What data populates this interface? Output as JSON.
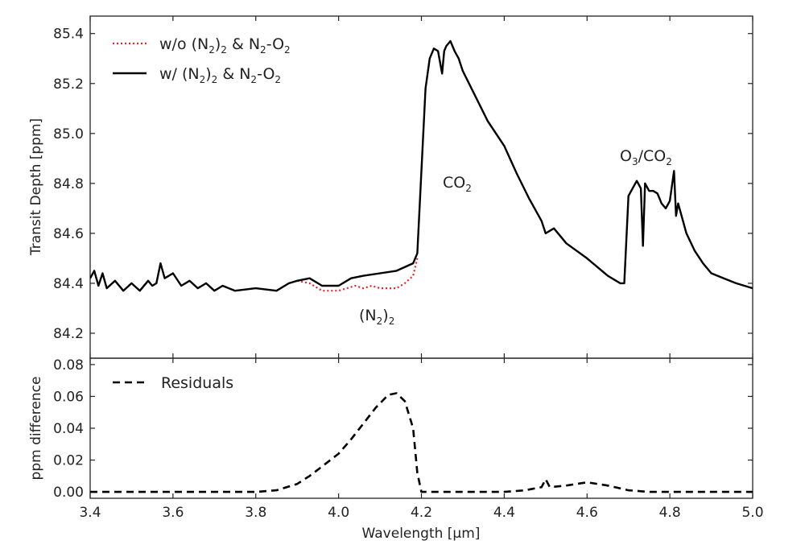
{
  "figure": {
    "colors": {
      "with_line": "#000000",
      "without_line": "#e8242b",
      "residual_line": "#000000",
      "frame": "#222222"
    }
  },
  "chart_data": [
    {
      "type": "line",
      "panel": "top",
      "title": "",
      "xlabel": "",
      "ylabel": "Transit Depth [ppm]",
      "xlim": [
        3.4,
        5.0
      ],
      "ylim": [
        84.1,
        85.47
      ],
      "yticks": [
        84.2,
        84.4,
        84.6,
        84.8,
        85.0,
        85.2,
        85.4
      ],
      "ytick_labels": [
        "84.2",
        "84.4",
        "84.6",
        "84.8",
        "85.0",
        "85.2",
        "85.4"
      ],
      "legend_position": "top-left",
      "legend": [
        {
          "label_main": "w/o (N",
          "sub1": "2",
          "mid": ")",
          "sub2": "2",
          "tail": " & N",
          "sub3": "2",
          "tail2": "-O",
          "sub4": "2",
          "style": "dotted"
        },
        {
          "label_main": "w/ (N",
          "sub1": "2",
          "mid": ")",
          "sub2": "2",
          "tail": " & N",
          "sub3": "2",
          "tail2": "-O",
          "sub4": "2",
          "style": "solid"
        }
      ],
      "annotations": [
        {
          "main": "CO",
          "sub": "2",
          "tail": "",
          "x": 4.27,
          "y": 84.82
        },
        {
          "main": "O",
          "sub": "3",
          "tail": "/CO",
          "sub2": "2",
          "x": 4.83,
          "y": 84.88
        },
        {
          "main": "(N",
          "sub": "2",
          "tail": ")",
          "sub2": "2",
          "x": 4.08,
          "y": 84.26
        }
      ],
      "series": [
        {
          "name": "w/ (N2)2 & N2-O2",
          "style": "solid",
          "x": [
            3.4,
            3.41,
            3.42,
            3.43,
            3.44,
            3.46,
            3.48,
            3.5,
            3.52,
            3.54,
            3.55,
            3.56,
            3.57,
            3.58,
            3.6,
            3.62,
            3.64,
            3.66,
            3.68,
            3.7,
            3.72,
            3.75,
            3.8,
            3.85,
            3.88,
            3.9,
            3.93,
            3.96,
            4.0,
            4.03,
            4.06,
            4.1,
            4.14,
            4.18,
            4.19,
            4.2,
            4.21,
            4.22,
            4.23,
            4.24,
            4.25,
            4.255,
            4.26,
            4.27,
            4.28,
            4.29,
            4.3,
            4.33,
            4.36,
            4.4,
            4.43,
            4.46,
            4.49,
            4.5,
            4.52,
            4.55,
            4.6,
            4.65,
            4.68,
            4.69,
            4.7,
            4.71,
            4.72,
            4.73,
            4.735,
            4.74,
            4.75,
            4.76,
            4.77,
            4.78,
            4.79,
            4.8,
            4.81,
            4.815,
            4.82,
            4.84,
            4.86,
            4.88,
            4.9,
            4.93,
            4.96,
            5.0
          ],
          "y": [
            84.42,
            84.45,
            84.39,
            84.44,
            84.38,
            84.41,
            84.37,
            84.4,
            84.37,
            84.41,
            84.39,
            84.4,
            84.48,
            84.42,
            84.44,
            84.39,
            84.41,
            84.38,
            84.4,
            84.37,
            84.39,
            84.37,
            84.38,
            84.37,
            84.4,
            84.41,
            84.42,
            84.39,
            84.39,
            84.42,
            84.43,
            84.44,
            84.45,
            84.48,
            84.52,
            84.85,
            85.18,
            85.3,
            85.34,
            85.33,
            85.24,
            85.33,
            85.35,
            85.37,
            85.33,
            85.3,
            85.25,
            85.15,
            85.05,
            84.95,
            84.84,
            84.74,
            84.65,
            84.6,
            84.62,
            84.56,
            84.5,
            84.43,
            84.4,
            84.4,
            84.75,
            84.78,
            84.81,
            84.78,
            84.55,
            84.8,
            84.77,
            84.77,
            84.76,
            84.72,
            84.7,
            84.73,
            84.85,
            84.67,
            84.72,
            84.6,
            84.53,
            84.48,
            84.44,
            84.42,
            84.4,
            84.38
          ]
        },
        {
          "name": "w/o (N2)2 & N2-O2",
          "style": "dotted",
          "x": [
            3.9,
            3.93,
            3.96,
            3.98,
            4.0,
            4.02,
            4.04,
            4.06,
            4.08,
            4.1,
            4.12,
            4.14,
            4.16,
            4.18,
            4.19
          ],
          "y": [
            84.41,
            84.4,
            84.37,
            84.37,
            84.37,
            84.38,
            84.39,
            84.38,
            84.39,
            84.38,
            84.38,
            84.38,
            84.4,
            84.43,
            84.5
          ]
        }
      ]
    },
    {
      "type": "line",
      "panel": "bottom",
      "title": "",
      "xlabel": "Wavelength [μm]",
      "ylabel": "ppm difference",
      "xlim": [
        3.4,
        5.0
      ],
      "ylim": [
        -0.004,
        0.084
      ],
      "xticks": [
        3.4,
        3.6,
        3.8,
        4.0,
        4.2,
        4.4,
        4.6,
        4.8,
        5.0
      ],
      "xtick_labels": [
        "3.4",
        "3.6",
        "3.8",
        "4.0",
        "4.2",
        "4.4",
        "4.6",
        "4.8",
        "5.0"
      ],
      "yticks": [
        0.0,
        0.02,
        0.04,
        0.06,
        0.08
      ],
      "ytick_labels": [
        "0.00",
        "0.02",
        "0.04",
        "0.06",
        "0.08"
      ],
      "legend_position": "top-left",
      "legend": [
        {
          "label": "Residuals",
          "style": "dashed"
        }
      ],
      "series": [
        {
          "name": "Residuals",
          "style": "dashed",
          "x": [
            3.4,
            3.8,
            3.85,
            3.9,
            3.93,
            3.96,
            4.0,
            4.03,
            4.06,
            4.09,
            4.12,
            4.14,
            4.16,
            4.18,
            4.19,
            4.2,
            4.25,
            4.4,
            4.45,
            4.49,
            4.5,
            4.51,
            4.55,
            4.6,
            4.65,
            4.7,
            4.75,
            5.0
          ],
          "y": [
            0.0,
            0.0,
            0.001,
            0.005,
            0.01,
            0.016,
            0.024,
            0.033,
            0.043,
            0.053,
            0.061,
            0.062,
            0.057,
            0.04,
            0.012,
            0.0,
            0.0,
            0.0,
            0.001,
            0.003,
            0.008,
            0.003,
            0.004,
            0.006,
            0.004,
            0.001,
            0.0,
            0.0
          ]
        }
      ]
    }
  ]
}
